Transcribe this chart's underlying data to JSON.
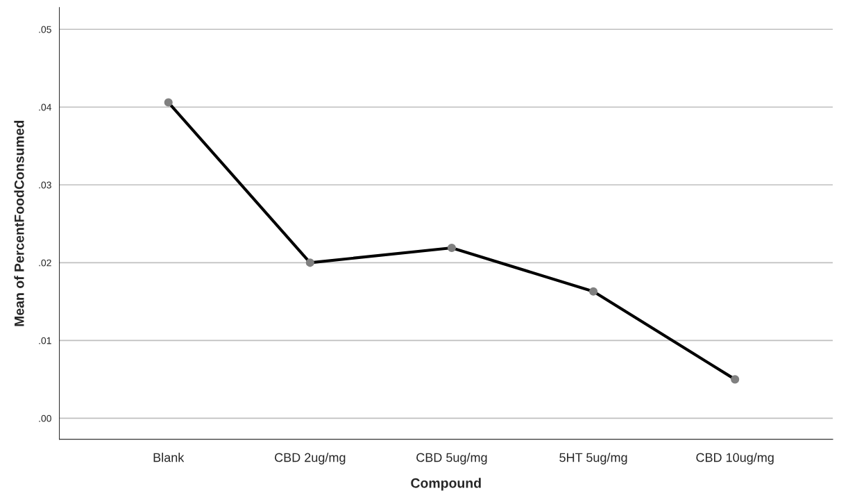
{
  "chart_data": {
    "type": "line",
    "xlabel": "Compound",
    "ylabel": "Mean of PercentFoodConsumed",
    "categories": [
      "Blank",
      "CBD 2ug/mg",
      "CBD 5ug/mg",
      "5HT 5ug/mg",
      "CBD 10ug/mg"
    ],
    "series": [
      {
        "color": "#000000",
        "colors": [
          "#808080",
          "#808080",
          "#808080",
          "#808080",
          "#808080"
        ],
        "values": [
          0.0406,
          0.02,
          0.0219,
          0.0163,
          0.005
        ]
      }
    ],
    "ylim": [
      -0.0027,
      0.0528
    ],
    "yticks": [
      {
        "value": 0.0,
        "label": ".00"
      },
      {
        "value": 0.01,
        "label": ".01"
      },
      {
        "value": 0.02,
        "label": ".02"
      },
      {
        "value": 0.03,
        "label": ".03"
      },
      {
        "value": 0.04,
        "label": ".04"
      },
      {
        "value": 0.05,
        "label": ".05"
      }
    ],
    "grid": "y",
    "marker": "circle",
    "line_style": "solid",
    "legend": false
  }
}
